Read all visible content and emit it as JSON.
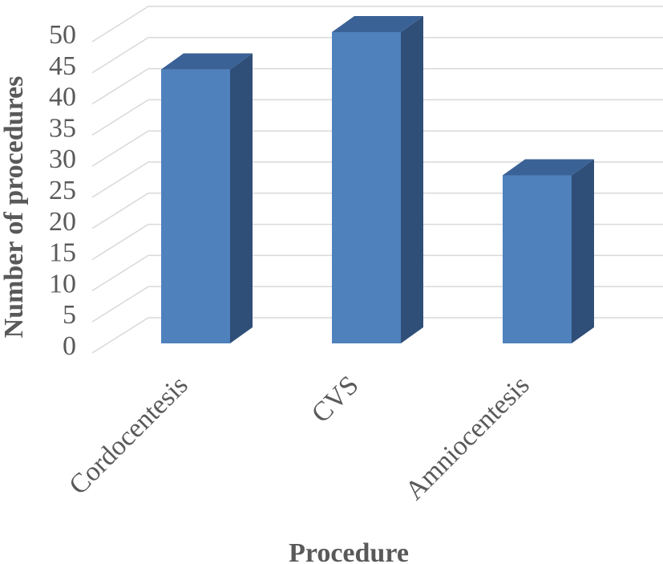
{
  "chart_data": {
    "type": "bar",
    "style": "3d-column",
    "categories": [
      "Cordocentesis",
      "CVS",
      "Amniocentesis"
    ],
    "values": [
      44,
      50,
      27
    ],
    "title": "",
    "xlabel": "Procedure",
    "ylabel": "Number of procedures",
    "ylim": [
      0,
      50
    ],
    "yticks": [
      "0",
      "5",
      "10",
      "15",
      "20",
      "25",
      "30",
      "35",
      "40",
      "45",
      "50"
    ],
    "grid": true,
    "legend": "none",
    "colors": {
      "bar_front": "#4f81bd",
      "bar_side": "#2f4f78",
      "bar_top": "#3b6296",
      "grid": "#d9d9d9",
      "text": "#595959"
    }
  }
}
